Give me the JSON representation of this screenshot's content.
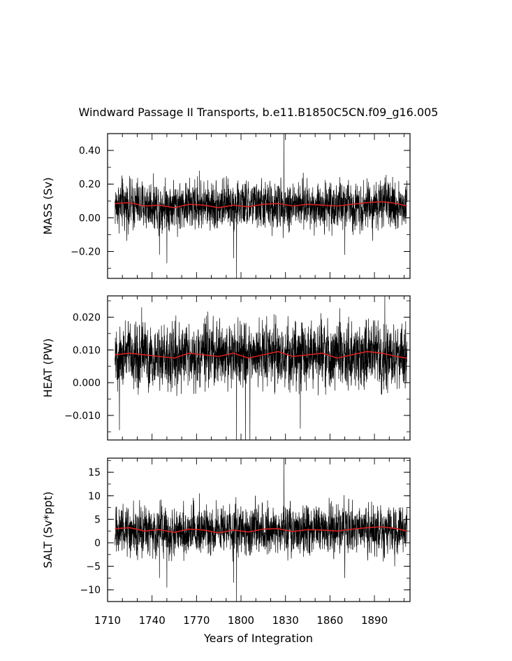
{
  "figure": {
    "title": "Windward Passage II Transports, b.e11.B1850C5CN.f09_g16.005",
    "xlabel": "Years of Integration",
    "x_ticks": [
      "1710",
      "1740",
      "1770",
      "1800",
      "1830",
      "1860",
      "1890"
    ]
  },
  "colors": {
    "raw_series": "#000000",
    "smoothed_series": "#d42020",
    "axes": "#000000"
  },
  "chart_data": [
    {
      "type": "line",
      "ylabel": "MASS (Sv)",
      "xlim": [
        1710,
        1914
      ],
      "ylim": [
        -0.36,
        0.5
      ],
      "y_ticks": [
        -0.2,
        0.0,
        0.2,
        0.4
      ],
      "y_tick_labels": [
        "−0.20",
        "0.00",
        "0.20",
        "0.40"
      ],
      "grid": false,
      "series": [
        {
          "style": "raw-monthly",
          "x_start": 1715,
          "x_end": 1912,
          "mean": 0.075,
          "spread": 0.075,
          "spikes": [
            [
              1829,
              0.5
            ],
            [
              1797,
              -0.36
            ],
            [
              1750,
              -0.27
            ],
            [
              1795,
              -0.24
            ],
            [
              1772,
              0.28
            ],
            [
              1745,
              -0.22
            ],
            [
              1870,
              -0.22
            ]
          ]
        },
        {
          "style": "smoothed",
          "x": [
            1715,
            1725,
            1735,
            1745,
            1755,
            1765,
            1775,
            1785,
            1795,
            1805,
            1815,
            1825,
            1835,
            1845,
            1855,
            1865,
            1875,
            1885,
            1895,
            1905,
            1912
          ],
          "y": [
            0.085,
            0.09,
            0.07,
            0.075,
            0.06,
            0.08,
            0.075,
            0.06,
            0.075,
            0.065,
            0.08,
            0.085,
            0.07,
            0.08,
            0.075,
            0.07,
            0.08,
            0.09,
            0.095,
            0.085,
            0.07
          ]
        }
      ]
    },
    {
      "type": "line",
      "ylabel": "HEAT (PW)",
      "xlim": [
        1710,
        1914
      ],
      "ylim": [
        -0.0175,
        0.0265
      ],
      "y_ticks": [
        -0.01,
        0.0,
        0.01,
        0.02
      ],
      "y_tick_labels": [
        "−0.010",
        "0.000",
        "0.010",
        "0.020"
      ],
      "grid": false,
      "series": [
        {
          "style": "raw-monthly",
          "x_start": 1715,
          "x_end": 1912,
          "mean": 0.0085,
          "spread": 0.0052,
          "spikes": [
            [
              1797,
              -0.0175
            ],
            [
              1803,
              -0.0175
            ],
            [
              1806,
              -0.0175
            ],
            [
              1897,
              0.0265
            ],
            [
              1733,
              0.023
            ],
            [
              1718,
              -0.0145
            ],
            [
              1840,
              -0.014
            ]
          ]
        },
        {
          "style": "smoothed",
          "x": [
            1715,
            1725,
            1735,
            1745,
            1755,
            1765,
            1775,
            1785,
            1795,
            1805,
            1815,
            1825,
            1835,
            1845,
            1855,
            1865,
            1875,
            1885,
            1895,
            1905,
            1912
          ],
          "y": [
            0.0085,
            0.009,
            0.0085,
            0.008,
            0.0075,
            0.009,
            0.0085,
            0.008,
            0.009,
            0.0075,
            0.0085,
            0.0095,
            0.008,
            0.0085,
            0.009,
            0.0075,
            0.0085,
            0.0095,
            0.009,
            0.008,
            0.0075
          ]
        }
      ]
    },
    {
      "type": "line",
      "ylabel": "SALT (Sv*ppt)",
      "xlim": [
        1710,
        1914
      ],
      "ylim": [
        -12.5,
        18
      ],
      "y_ticks": [
        -10,
        -5,
        0,
        5,
        10,
        15
      ],
      "y_tick_labels": [
        "−10",
        "−5",
        "0",
        "5",
        "10",
        "15"
      ],
      "grid": false,
      "series": [
        {
          "style": "raw-monthly",
          "x_start": 1715,
          "x_end": 1912,
          "mean": 2.7,
          "spread": 2.7,
          "spikes": [
            [
              1829,
              18
            ],
            [
              1797,
              -12.5
            ],
            [
              1750,
              -9.5
            ],
            [
              1795,
              -8.5
            ],
            [
              1772,
              10.5
            ],
            [
              1870,
              -7.5
            ],
            [
              1745,
              -7.5
            ]
          ]
        },
        {
          "style": "smoothed",
          "x": [
            1715,
            1725,
            1735,
            1745,
            1755,
            1765,
            1775,
            1785,
            1795,
            1805,
            1815,
            1825,
            1835,
            1845,
            1855,
            1865,
            1875,
            1885,
            1895,
            1905,
            1912
          ],
          "y": [
            3.0,
            3.2,
            2.5,
            2.8,
            2.2,
            2.9,
            2.7,
            2.1,
            2.7,
            2.3,
            2.9,
            3.0,
            2.4,
            2.8,
            2.7,
            2.5,
            2.9,
            3.2,
            3.4,
            3.0,
            2.5
          ]
        }
      ]
    }
  ]
}
